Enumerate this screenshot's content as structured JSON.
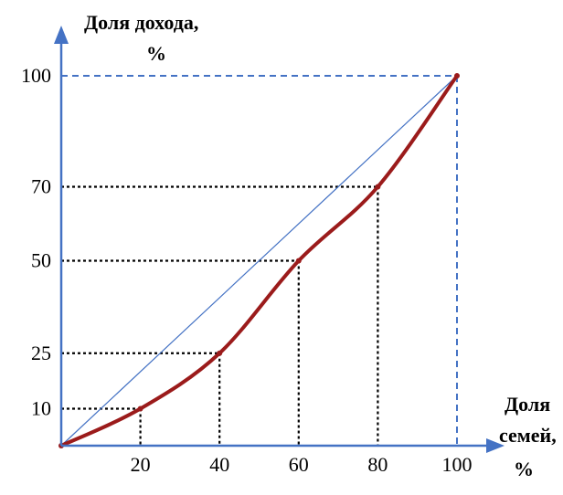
{
  "chart_data": {
    "type": "line",
    "title": "",
    "ylabel_line1": "Доля дохода,",
    "ylabel_line2": "%",
    "xlabel_line1": "Доля",
    "xlabel_line2": "семей,",
    "xlabel_line3": "%",
    "xlim": [
      0,
      100
    ],
    "ylim": [
      0,
      100
    ],
    "x_ticks": [
      "20",
      "40",
      "60",
      "80",
      "100"
    ],
    "y_ticks": [
      "10",
      "25",
      "50",
      "70",
      "100"
    ],
    "grid": false,
    "legend": "none",
    "series": [
      {
        "role": "lorenz-curve",
        "x": [
          0,
          20,
          40,
          60,
          80,
          100
        ],
        "y": [
          0,
          10,
          25,
          50,
          70,
          100
        ]
      },
      {
        "role": "equality-line",
        "x": [
          0,
          100
        ],
        "y": [
          0,
          100
        ]
      }
    ],
    "guides": [
      {
        "x": 20,
        "y": 10
      },
      {
        "x": 40,
        "y": 25
      },
      {
        "x": 60,
        "y": 50
      },
      {
        "x": 80,
        "y": 70
      },
      {
        "x": 100,
        "y": 100
      }
    ],
    "colors": {
      "axis": "#4472C4",
      "curve": "#9B1B1B",
      "equality": "#4472C4",
      "guide": "#000000",
      "frame": "#4472C4"
    }
  }
}
